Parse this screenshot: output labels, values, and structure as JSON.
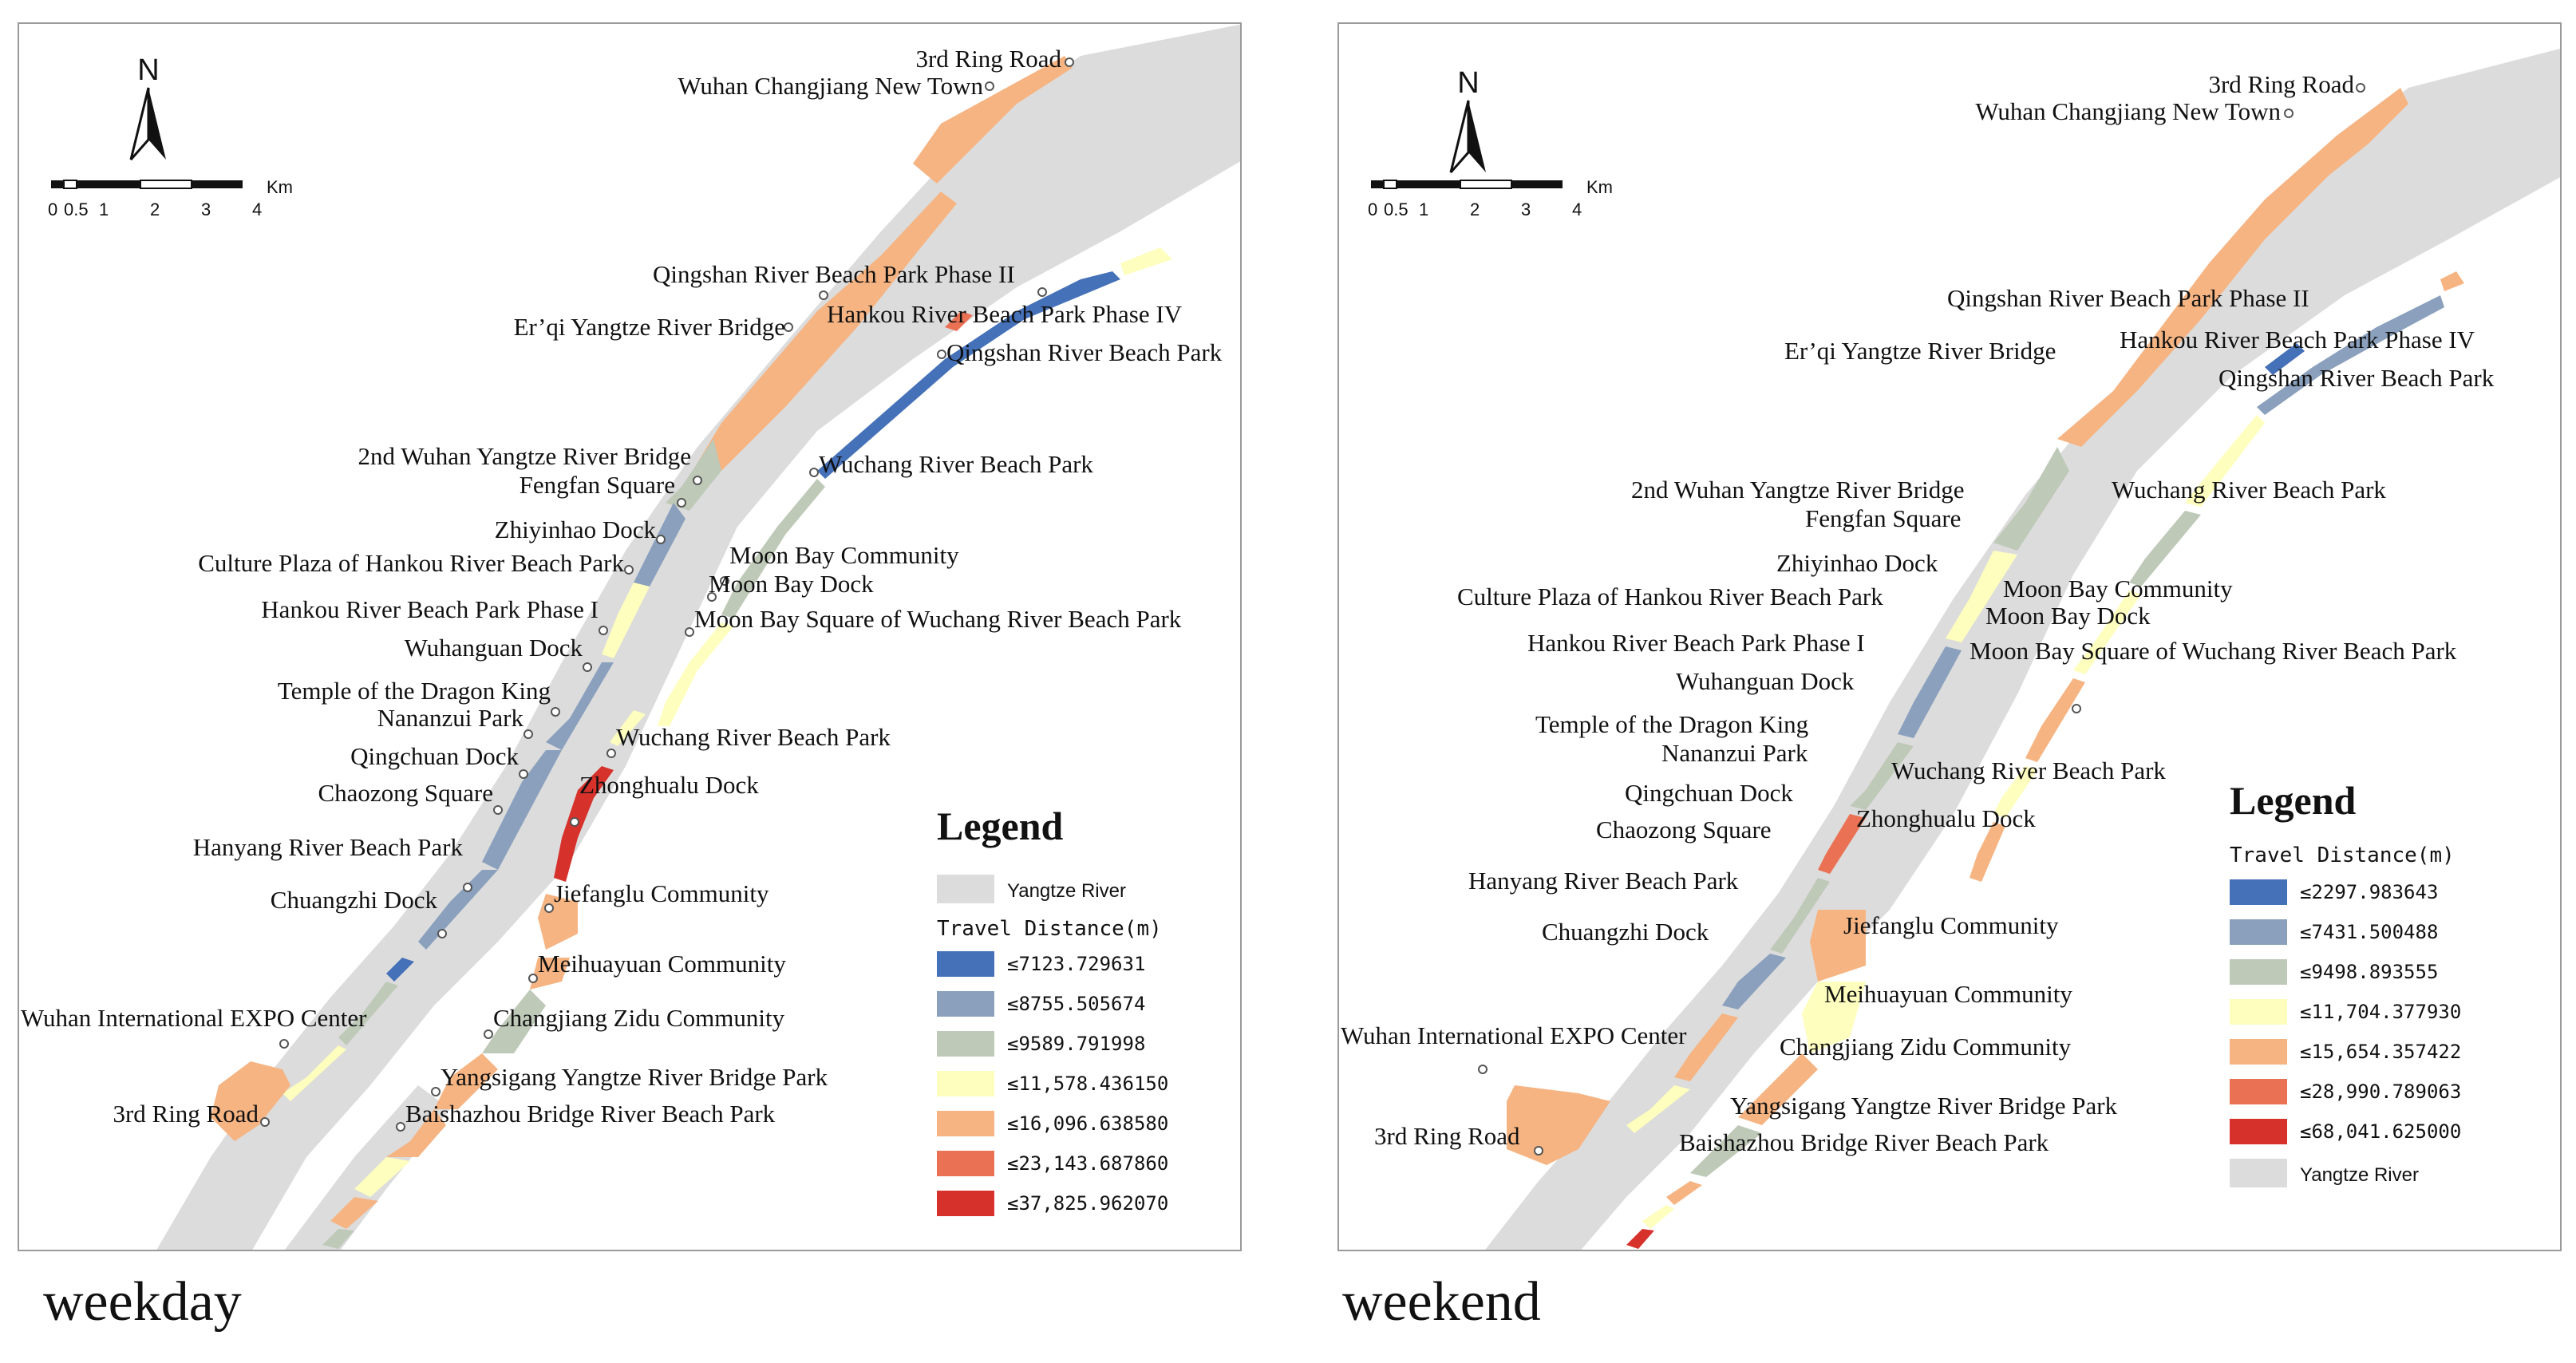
{
  "panels": [
    {
      "caption": "weekday",
      "north": "N",
      "scale": {
        "ticks": [
          "0",
          "0.5",
          "1",
          "2",
          "3",
          "4"
        ],
        "unit": "Km"
      },
      "legend": {
        "title": "Legend",
        "subtitle": "Travel Distance(m)",
        "items": [
          {
            "label": "≤7123.729631",
            "color": "#4571b8"
          },
          {
            "label": "≤8755.505674",
            "color": "#8aa0bd"
          },
          {
            "label": "≤9589.791998",
            "color": "#bec9b8"
          },
          {
            "label": "≤11,578.436150",
            "color": "#fefebe"
          },
          {
            "label": "≤16,096.638580",
            "color": "#f6b482"
          },
          {
            "label": "≤23,143.687860",
            "color": "#ea7153"
          },
          {
            "label": "≤37,825.962070",
            "color": "#d6312b"
          }
        ],
        "river_label": "Yangtze River",
        "river_color": "#dcdcdc"
      },
      "places": [
        "3rd Ring Road",
        "Wuhan Changjiang New Town",
        "Qingshan River Beach Park Phase II",
        "Hankou River Beach Park Phase IV",
        "Er’qi Yangtze River Bridge",
        "Qingshan River Beach Park",
        "2nd Wuhan Yangtze River Bridge",
        "Fengfan Square",
        "Wuchang River Beach Park",
        "Zhiyinhao Dock",
        "Moon Bay Community",
        "Culture Plaza of Hankou River Beach Park",
        "Moon Bay Dock",
        "Hankou River Beach Park Phase I",
        "Moon Bay Square of Wuchang River Beach Park",
        "Wuhanguan Dock",
        "Temple of the Dragon King",
        "Nananzui Park",
        "Wuchang River Beach Park",
        "Qingchuan Dock",
        "Zhonghualu Dock",
        "Chaozong Square",
        "Hanyang River Beach Park",
        "Jiefanglu Community",
        "Chuangzhi Dock",
        "Meihuayuan Community",
        "Wuhan International EXPO Center",
        "Changjiang Zidu Community",
        "Yangsigang Yangtze River Bridge Park",
        "3rd Ring Road",
        "Baishazhou Bridge River Beach Park"
      ]
    },
    {
      "caption": "weekend",
      "north": "N",
      "scale": {
        "ticks": [
          "0",
          "0.5",
          "1",
          "2",
          "3",
          "4"
        ],
        "unit": "Km"
      },
      "legend": {
        "title": "Legend",
        "subtitle": "Travel Distance(m)",
        "items": [
          {
            "label": "≤2297.983643",
            "color": "#4571b8"
          },
          {
            "label": "≤7431.500488",
            "color": "#8aa0bd"
          },
          {
            "label": "≤9498.893555",
            "color": "#bec9b8"
          },
          {
            "label": "≤11,704.377930",
            "color": "#fefebe"
          },
          {
            "label": "≤15,654.357422",
            "color": "#f6b482"
          },
          {
            "label": "≤28,990.789063",
            "color": "#ea7153"
          },
          {
            "label": "≤68,041.625000",
            "color": "#d6312b"
          }
        ],
        "river_label": "Yangtze River",
        "river_color": "#dcdcdc"
      },
      "places": [
        "3rd Ring Road",
        "Wuhan Changjiang New Town",
        "Qingshan River Beach Park Phase II",
        "Er’qi Yangtze River Bridge",
        "Hankou River Beach Park Phase IV",
        "Qingshan River Beach Park",
        "2nd Wuhan Yangtze River Bridge",
        "Wuchang River Beach Park",
        "Fengfan Square",
        "Zhiyinhao Dock",
        "Moon Bay Community",
        "Culture Plaza of Hankou River Beach Park",
        "Moon Bay Dock",
        "Hankou River Beach Park Phase I",
        "Moon Bay Square of Wuchang River Beach Park",
        "Wuhanguan Dock",
        "Temple of the Dragon King",
        "Nananzui Park",
        "Wuchang River Beach Park",
        "Qingchuan Dock",
        "Zhonghualu Dock",
        "Chaozong Square",
        "Hanyang River Beach Park",
        "Jiefanglu Community",
        "Chuangzhi Dock",
        "Meihuayuan Community",
        "Wuhan International EXPO Center",
        "Changjiang Zidu Community",
        "Yangsigang Yangtze River Bridge Park",
        "3rd Ring Road",
        "Baishazhou Bridge River Beach Park"
      ]
    }
  ]
}
